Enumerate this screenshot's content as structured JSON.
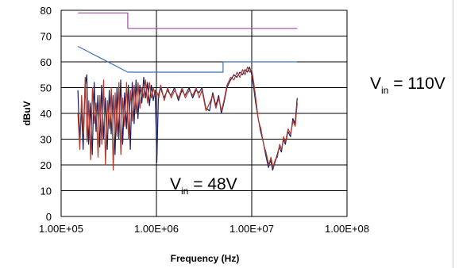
{
  "colors": {
    "limit_qp": "#a64ca6",
    "limit_avg": "#3a72b8",
    "vin_110": "#1c1f5e",
    "vin_48": "#b23a2a",
    "grid": "#000000"
  },
  "chart_data": {
    "type": "line",
    "xscale": "log",
    "xlim": [
      100000,
      100000000
    ],
    "ylim": [
      0,
      80
    ],
    "xlabel": "Frequency (Hz)",
    "ylabel": "dBuV",
    "x_tick_labels": [
      "1.00E+05",
      "1.00E+06",
      "1.00E+07",
      "1.00E+08"
    ],
    "x_ticks": [
      100000,
      1000000,
      10000000,
      100000000
    ],
    "y_tick_labels": [
      "0",
      "10",
      "20",
      "30",
      "40",
      "50",
      "60",
      "70",
      "80"
    ],
    "y_ticks": [
      0,
      10,
      20,
      30,
      40,
      50,
      60,
      70,
      80
    ],
    "grid": true,
    "annotations": [
      {
        "main": "V",
        "sub": "in",
        "rest": " = 110V"
      },
      {
        "main": "V",
        "sub": "in",
        "rest": " = 48V"
      }
    ],
    "series": [
      {
        "key": "limit_qp",
        "points": [
          [
            150000,
            79
          ],
          [
            500000,
            79
          ],
          [
            500000,
            73
          ],
          [
            30000000,
            73
          ]
        ]
      },
      {
        "key": "limit_avg",
        "points": [
          [
            150000,
            66
          ],
          [
            500000,
            56
          ],
          [
            5000000,
            56
          ],
          [
            5000000,
            60
          ],
          [
            30000000,
            60
          ]
        ]
      },
      {
        "key": "vin_110",
        "points": [
          [
            150000,
            49
          ],
          [
            156000,
            30
          ],
          [
            163000,
            42
          ],
          [
            170000,
            26
          ],
          [
            178000,
            50
          ],
          [
            186000,
            55
          ],
          [
            194000,
            28
          ],
          [
            203000,
            44
          ],
          [
            212000,
            24
          ],
          [
            222000,
            52
          ],
          [
            232000,
            33
          ],
          [
            243000,
            47
          ],
          [
            254000,
            27
          ],
          [
            266000,
            51
          ],
          [
            278000,
            30
          ],
          [
            291000,
            46
          ],
          [
            305000,
            26
          ],
          [
            320000,
            49
          ],
          [
            335000,
            32
          ],
          [
            351000,
            47
          ],
          [
            368000,
            24
          ],
          [
            385000,
            50
          ],
          [
            403000,
            30
          ],
          [
            422000,
            53
          ],
          [
            442000,
            28
          ],
          [
            463000,
            48
          ],
          [
            485000,
            34
          ],
          [
            508000,
            51
          ],
          [
            532000,
            26
          ],
          [
            557000,
            52
          ],
          [
            583000,
            36
          ],
          [
            611000,
            53
          ],
          [
            640000,
            38
          ],
          [
            670000,
            51
          ],
          [
            702000,
            44
          ],
          [
            735000,
            54
          ],
          [
            770000,
            46
          ],
          [
            806000,
            52
          ],
          [
            845000,
            43
          ],
          [
            885000,
            51
          ],
          [
            927000,
            45
          ],
          [
            971000,
            49
          ],
          [
            1010000,
            21
          ],
          [
            1050000,
            47
          ],
          [
            1100000,
            50
          ],
          [
            1200000,
            46
          ],
          [
            1300000,
            49
          ],
          [
            1420000,
            47
          ],
          [
            1550000,
            50
          ],
          [
            1700000,
            45
          ],
          [
            1850000,
            49
          ],
          [
            2000000,
            47
          ],
          [
            2200000,
            50
          ],
          [
            2400000,
            46
          ],
          [
            2600000,
            49
          ],
          [
            2800000,
            48
          ],
          [
            3000000,
            50
          ],
          [
            3300000,
            42
          ],
          [
            3600000,
            41
          ],
          [
            3900000,
            48
          ],
          [
            4200000,
            43
          ],
          [
            4500000,
            47
          ],
          [
            4800000,
            40
          ],
          [
            5100000,
            44
          ],
          [
            5500000,
            50
          ],
          [
            6000000,
            53
          ],
          [
            6500000,
            55
          ],
          [
            7000000,
            54
          ],
          [
            7500000,
            56
          ],
          [
            8000000,
            55
          ],
          [
            8500000,
            57
          ],
          [
            9000000,
            56
          ],
          [
            9500000,
            58
          ],
          [
            10000000,
            55
          ],
          [
            10500000,
            50
          ],
          [
            11000000,
            44
          ],
          [
            11700000,
            38
          ],
          [
            12400000,
            33
          ],
          [
            13200000,
            29
          ],
          [
            14000000,
            24
          ],
          [
            15000000,
            19
          ],
          [
            15800000,
            22
          ],
          [
            16600000,
            18
          ],
          [
            17500000,
            21
          ],
          [
            18500000,
            24
          ],
          [
            19500000,
            27
          ],
          [
            20500000,
            25
          ],
          [
            21500000,
            30
          ],
          [
            22500000,
            28
          ],
          [
            24000000,
            33
          ],
          [
            25500000,
            31
          ],
          [
            27000000,
            38
          ],
          [
            28500000,
            36
          ],
          [
            30000000,
            46
          ]
        ]
      },
      {
        "key": "vin_48",
        "points": [
          [
            150000,
            40
          ],
          [
            157000,
            26
          ],
          [
            164000,
            47
          ],
          [
            171000,
            32
          ],
          [
            179000,
            54
          ],
          [
            187000,
            29
          ],
          [
            195000,
            45
          ],
          [
            204000,
            22
          ],
          [
            213000,
            50
          ],
          [
            223000,
            36
          ],
          [
            233000,
            44
          ],
          [
            244000,
            23
          ],
          [
            255000,
            47
          ],
          [
            267000,
            28
          ],
          [
            279000,
            53
          ],
          [
            292000,
            20
          ],
          [
            306000,
            45
          ],
          [
            321000,
            34
          ],
          [
            336000,
            50
          ],
          [
            352000,
            18
          ],
          [
            369000,
            48
          ],
          [
            386000,
            31
          ],
          [
            404000,
            52
          ],
          [
            423000,
            24
          ],
          [
            443000,
            46
          ],
          [
            464000,
            35
          ],
          [
            486000,
            52
          ],
          [
            509000,
            30
          ],
          [
            533000,
            49
          ],
          [
            558000,
            37
          ],
          [
            584000,
            51
          ],
          [
            612000,
            40
          ],
          [
            641000,
            52
          ],
          [
            671000,
            42
          ],
          [
            703000,
            50
          ],
          [
            736000,
            46
          ],
          [
            771000,
            53
          ],
          [
            807000,
            44
          ],
          [
            846000,
            52
          ],
          [
            886000,
            46
          ],
          [
            928000,
            50
          ],
          [
            972000,
            47
          ],
          [
            1020000,
            48
          ],
          [
            1060000,
            46
          ],
          [
            1110000,
            51
          ],
          [
            1210000,
            45
          ],
          [
            1310000,
            50
          ],
          [
            1430000,
            46
          ],
          [
            1560000,
            49
          ],
          [
            1710000,
            46
          ],
          [
            1860000,
            50
          ],
          [
            2010000,
            46
          ],
          [
            2210000,
            49
          ],
          [
            2410000,
            47
          ],
          [
            2610000,
            50
          ],
          [
            2810000,
            46
          ],
          [
            3010000,
            49
          ],
          [
            3310000,
            41
          ],
          [
            3610000,
            44
          ],
          [
            3910000,
            47
          ],
          [
            4210000,
            42
          ],
          [
            4510000,
            46
          ],
          [
            4810000,
            41
          ],
          [
            5110000,
            45
          ],
          [
            5510000,
            51
          ],
          [
            6010000,
            54
          ],
          [
            6510000,
            53
          ],
          [
            7010000,
            56
          ],
          [
            7510000,
            54
          ],
          [
            8010000,
            57
          ],
          [
            8510000,
            55
          ],
          [
            9010000,
            58
          ],
          [
            9510000,
            56
          ],
          [
            10000000,
            57
          ],
          [
            10600000,
            51
          ],
          [
            11100000,
            45
          ],
          [
            11800000,
            37
          ],
          [
            12500000,
            34
          ],
          [
            13300000,
            28
          ],
          [
            14100000,
            25
          ],
          [
            15100000,
            20
          ],
          [
            15900000,
            23
          ],
          [
            16700000,
            19
          ],
          [
            17600000,
            22
          ],
          [
            18600000,
            23
          ],
          [
            19600000,
            28
          ],
          [
            20600000,
            26
          ],
          [
            21600000,
            31
          ],
          [
            22600000,
            29
          ],
          [
            24100000,
            34
          ],
          [
            25600000,
            32
          ],
          [
            27100000,
            37
          ],
          [
            28600000,
            35
          ],
          [
            30000000,
            44
          ]
        ]
      }
    ]
  }
}
